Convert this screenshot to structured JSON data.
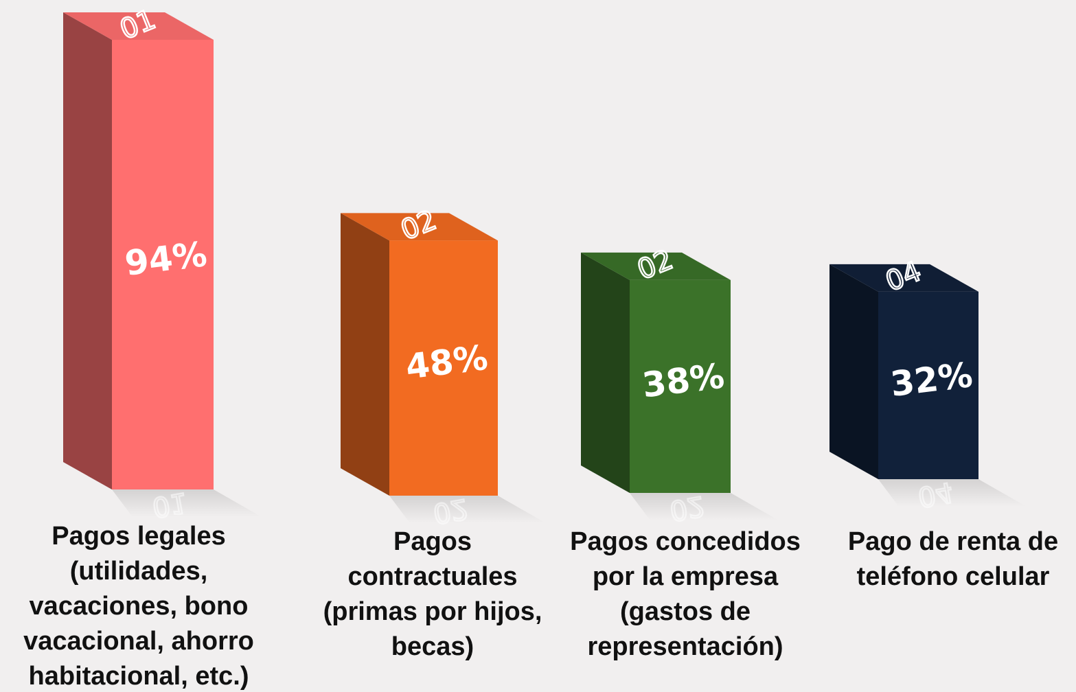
{
  "chart_data": {
    "type": "bar3d",
    "categories": [
      [
        "Pagos legales",
        "(utilidades,",
        "vacaciones, bono",
        "vacacional, ahorro",
        "habitacional, etc.)"
      ],
      [
        "Pagos",
        "contractuales",
        "(primas por hijos,",
        "becas)"
      ],
      [
        "Pagos concedidos",
        "por la empresa",
        "(gastos de",
        "representación)"
      ],
      [
        "Pago de renta de",
        "teléfono celular"
      ]
    ],
    "values": [
      94,
      48,
      38,
      32
    ],
    "value_labels": [
      "94%",
      "48%",
      "38%",
      "32%"
    ],
    "bar_tags": [
      "01",
      "02",
      "02",
      "04"
    ],
    "colors": [
      "#ff6f6f",
      "#f26b21",
      "#3b7229",
      "#11213a"
    ]
  }
}
